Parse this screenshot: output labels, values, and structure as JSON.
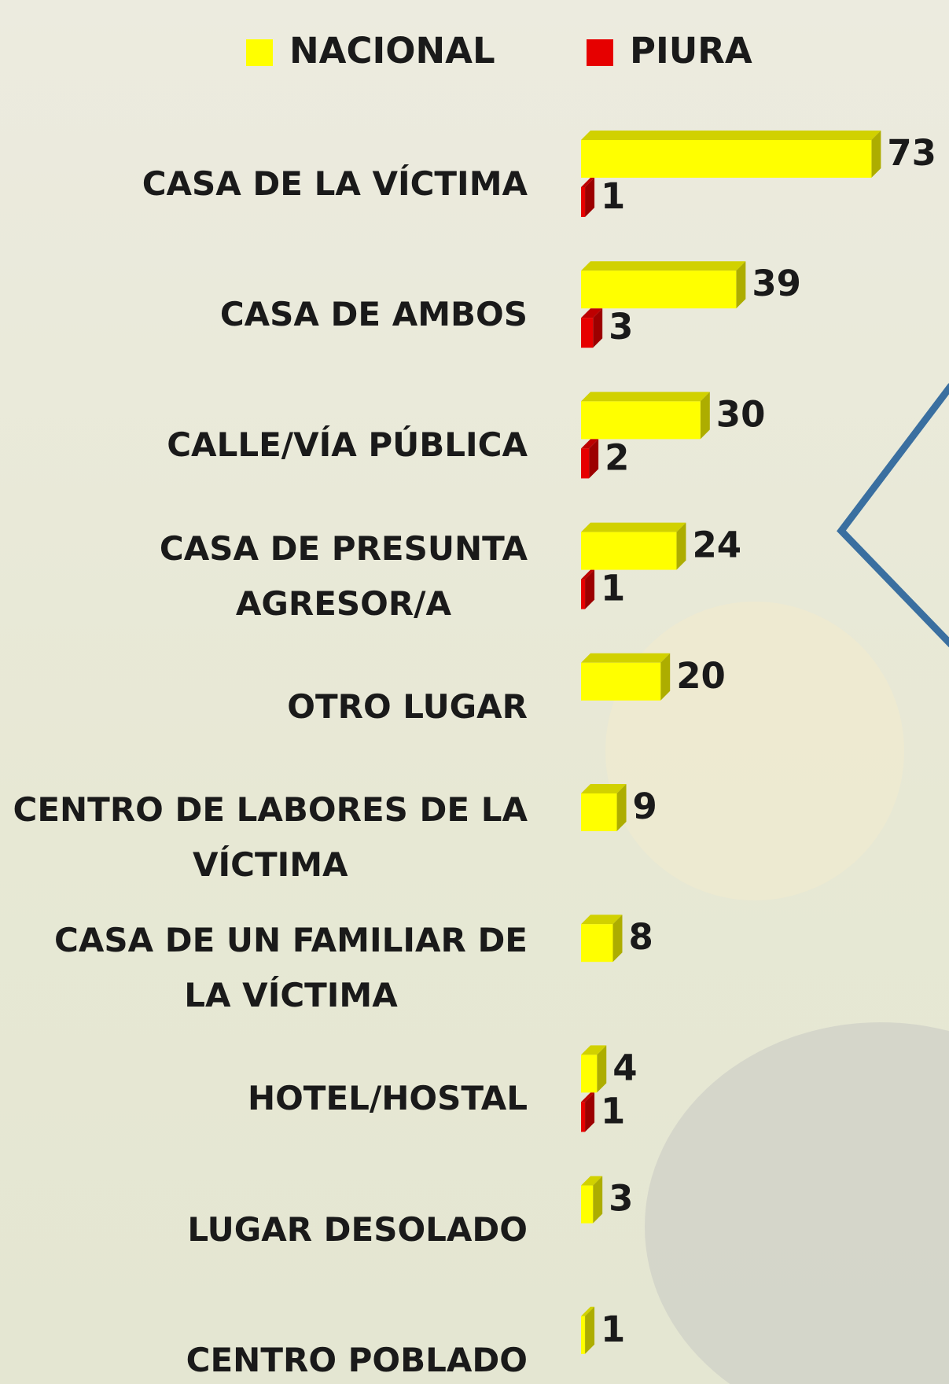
{
  "chart_data": {
    "type": "bar",
    "orientation": "horizontal",
    "categories": [
      "CASA DE LA VÍCTIMA",
      "CASA DE AMBOS",
      "CALLE/VÍA PÚBLICA",
      "CASA DE PRESUNTA\nAGRESOR/A",
      "OTRO LUGAR",
      "CENTRO DE LABORES DE LA\nVÍCTIMA",
      "CASA DE UN FAMILIAR DE\nLA VÍCTIMA",
      "HOTEL/HOSTAL",
      "LUGAR DESOLADO",
      "CENTRO POBLADO"
    ],
    "series": [
      {
        "name": "NACIONAL",
        "color": "#ffff00",
        "values": [
          73,
          39,
          30,
          24,
          20,
          9,
          8,
          4,
          3,
          1
        ]
      },
      {
        "name": "PIURA",
        "color": "#e60000",
        "values": [
          1,
          3,
          2,
          1,
          null,
          null,
          null,
          1,
          null,
          null
        ]
      }
    ]
  }
}
